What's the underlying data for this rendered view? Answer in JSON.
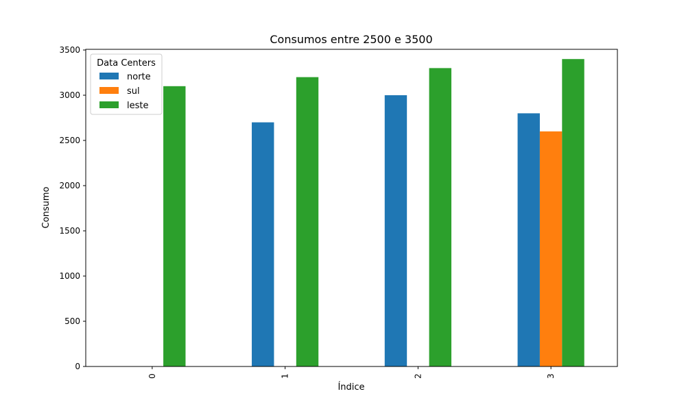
{
  "chart_data": {
    "type": "bar",
    "title": "Consumos entre 2500 e 3500",
    "xlabel": "Índice",
    "ylabel": "Consumo",
    "categories": [
      "0",
      "1",
      "2",
      "3"
    ],
    "ylim": [
      0,
      3500
    ],
    "yticks": [
      0,
      500,
      1000,
      1500,
      2000,
      2500,
      3000,
      3500
    ],
    "grid": false,
    "legend": {
      "title": "Data Centers",
      "placement": "top-left"
    },
    "series": [
      {
        "name": "norte",
        "color": "#1f77b4",
        "values": [
          null,
          2700,
          3000,
          2800
        ]
      },
      {
        "name": "sul",
        "color": "#ff7f0e",
        "values": [
          null,
          null,
          null,
          2600
        ]
      },
      {
        "name": "leste",
        "color": "#2ca02c",
        "values": [
          3100,
          3200,
          3300,
          3400
        ]
      }
    ]
  }
}
